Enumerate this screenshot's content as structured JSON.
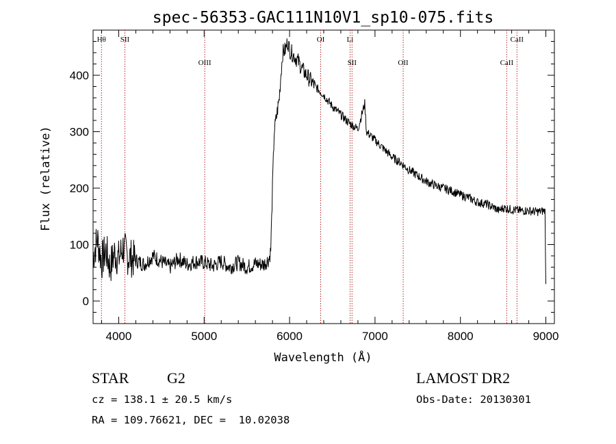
{
  "chart_data": {
    "type": "line",
    "title": "spec-56353-GAC111N10V1_sp10-075.fits",
    "xlabel": "Wavelength (Å)",
    "ylabel": "Flux (relative)",
    "xlim": [
      3700,
      9100
    ],
    "ylim": [
      -40,
      480
    ],
    "xticks": [
      4000,
      5000,
      6000,
      7000,
      8000,
      9000
    ],
    "yticks": [
      0,
      100,
      200,
      300,
      400
    ],
    "grid": false,
    "line_color": "#000000",
    "marker_color": "#b22222",
    "series": [
      {
        "x": [
          3700,
          3750,
          3800,
          3850,
          3900,
          3950,
          4000,
          4050,
          4100,
          4200,
          4300,
          4400,
          4500,
          4600,
          4700,
          4800,
          4900,
          5000,
          5100,
          5200,
          5300,
          5400,
          5500,
          5600,
          5700,
          5760,
          5780,
          5800,
          5820,
          5850,
          5880,
          5900,
          5920,
          5950,
          5980,
          6000,
          6050,
          6100,
          6150,
          6200,
          6300,
          6400,
          6500,
          6600,
          6700,
          6800,
          6880,
          6900,
          7000,
          7100,
          7200,
          7300,
          7400,
          7500,
          7600,
          7700,
          7800,
          7900,
          8000,
          8100,
          8200,
          8300,
          8400,
          8450,
          8500,
          8600,
          8700,
          8800,
          8900,
          8990,
          9000
        ],
        "y": [
          80,
          110,
          70,
          90,
          60,
          85,
          75,
          95,
          80,
          72,
          65,
          80,
          70,
          60,
          75,
          65,
          70,
          68,
          62,
          70,
          60,
          68,
          60,
          66,
          65,
          75,
          90,
          200,
          300,
          330,
          360,
          405,
          440,
          445,
          460,
          445,
          435,
          425,
          410,
          400,
          380,
          365,
          345,
          330,
          315,
          305,
          350,
          300,
          285,
          270,
          255,
          245,
          232,
          222,
          212,
          205,
          200,
          195,
          188,
          183,
          175,
          172,
          165,
          160,
          165,
          162,
          160,
          160,
          158,
          160,
          30
        ]
      }
    ],
    "lines": [
      {
        "label": "Hθ",
        "wavelength": 3798,
        "row": "upper"
      },
      {
        "label": "SII",
        "wavelength": 4072,
        "row": "upper"
      },
      {
        "label": "OIII",
        "wavelength": 5007,
        "row": "lower"
      },
      {
        "label": "OI",
        "wavelength": 6364,
        "row": "upper"
      },
      {
        "label": "Li",
        "wavelength": 6708,
        "row": "upper"
      },
      {
        "label": "SII",
        "wavelength": 6731,
        "row": "lower"
      },
      {
        "label": "OII",
        "wavelength": 7330,
        "row": "lower"
      },
      {
        "label": "CaII",
        "wavelength": 8542,
        "row": "lower"
      },
      {
        "label": "CaII",
        "wavelength": 8662,
        "row": "upper"
      }
    ]
  },
  "info": {
    "class": "STAR",
    "subclass": "G2",
    "survey": "LAMOST DR2",
    "cz": "cz = 138.1 ± 20.5 km/s",
    "obs_date": "Obs-Date: 20130301",
    "coords": "RA = 109.76621, DEC =  10.02038"
  }
}
